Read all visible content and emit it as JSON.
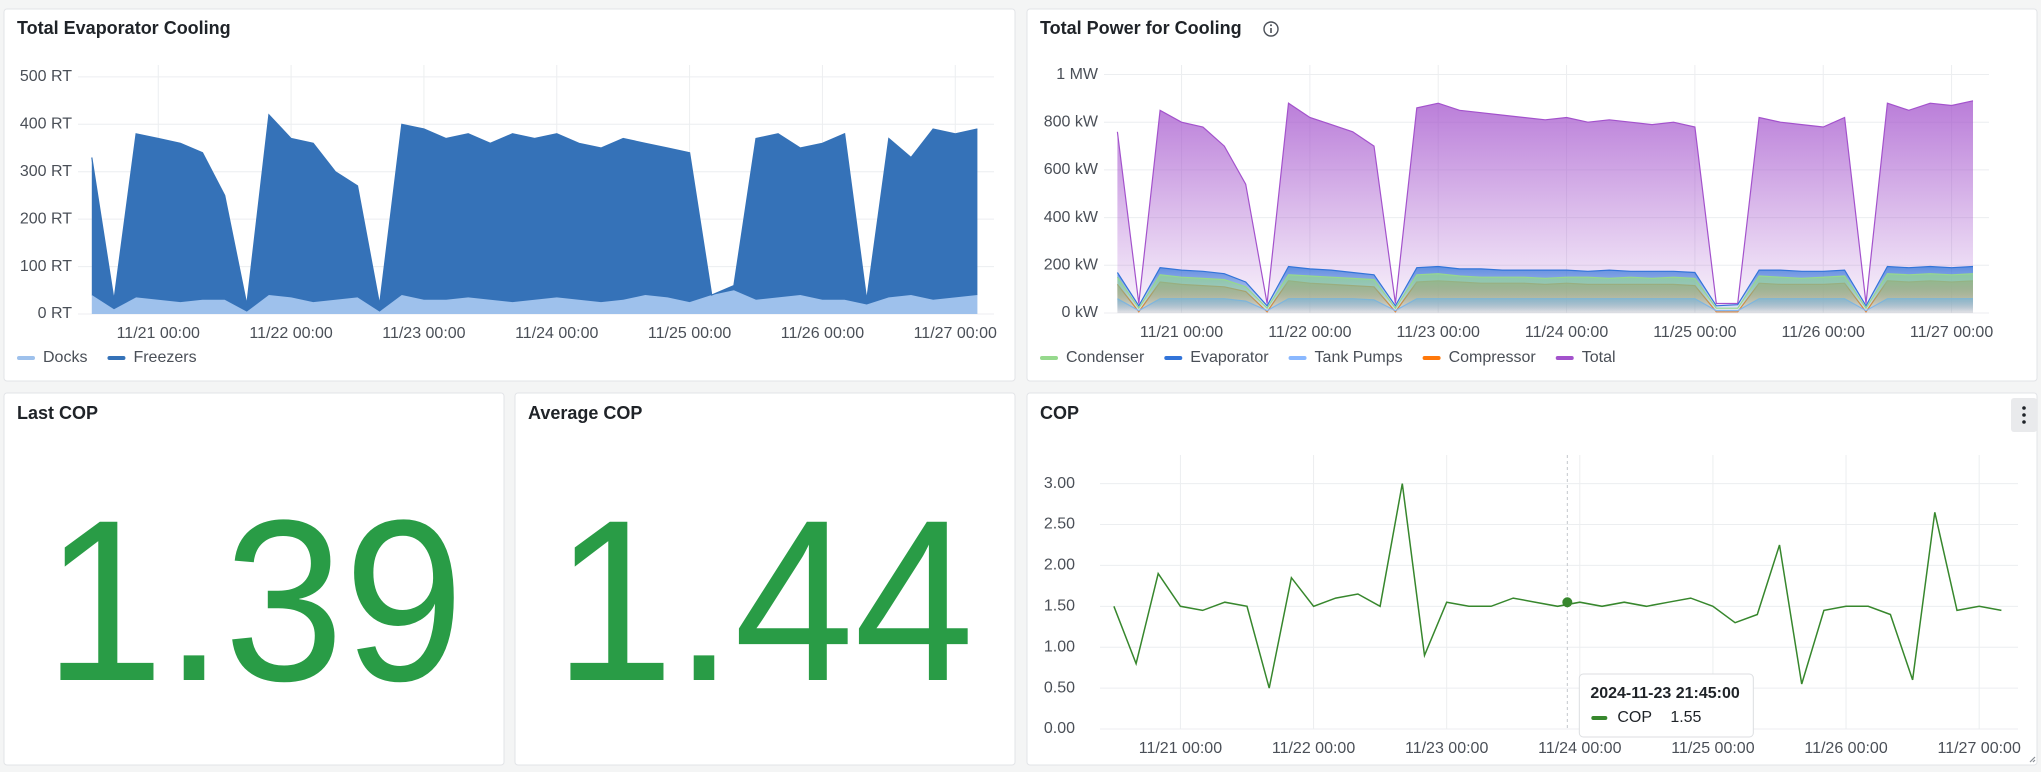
{
  "chart_data": [
    {
      "type": "area",
      "title": "Total Evaporator Cooling",
      "stacked": true,
      "grid": true,
      "legend": "bottom-left",
      "x": [
        "11/20 12:00",
        "11/20 16:00",
        "11/20 20:00",
        "11/21 00:00",
        "11/21 04:00",
        "11/21 08:00",
        "11/21 12:00",
        "11/21 16:00",
        "11/21 20:00",
        "11/22 00:00",
        "11/22 04:00",
        "11/22 08:00",
        "11/22 12:00",
        "11/22 16:00",
        "11/22 20:00",
        "11/23 00:00",
        "11/23 04:00",
        "11/23 08:00",
        "11/23 12:00",
        "11/23 16:00",
        "11/23 20:00",
        "11/24 00:00",
        "11/24 04:00",
        "11/24 08:00",
        "11/24 12:00",
        "11/24 16:00",
        "11/24 20:00",
        "11/25 00:00",
        "11/25 04:00",
        "11/25 08:00",
        "11/25 12:00",
        "11/25 16:00",
        "11/25 20:00",
        "11/26 00:00",
        "11/26 04:00",
        "11/26 08:00",
        "11/26 12:00",
        "11/26 16:00",
        "11/26 20:00",
        "11/27 00:00",
        "11/27 04:00"
      ],
      "xlim": [
        "11/20 09:30",
        "11/27 07:00"
      ],
      "xticks": [
        "11/21 00:00",
        "11/22 00:00",
        "11/23 00:00",
        "11/24 00:00",
        "11/25 00:00",
        "11/26 00:00",
        "11/27 00:00"
      ],
      "ylim": [
        0,
        525
      ],
      "yticks": [
        {
          "value": 0,
          "label": "0 RT"
        },
        {
          "value": 100,
          "label": "100 RT"
        },
        {
          "value": 200,
          "label": "200 RT"
        },
        {
          "value": 300,
          "label": "300 RT"
        },
        {
          "value": 400,
          "label": "400 RT"
        },
        {
          "value": 500,
          "label": "500 RT"
        }
      ],
      "series": [
        {
          "name": "Docks",
          "color": "#9ec1ec",
          "values": [
            40,
            10,
            35,
            30,
            25,
            30,
            30,
            5,
            40,
            35,
            25,
            30,
            35,
            5,
            40,
            30,
            30,
            35,
            30,
            25,
            30,
            35,
            30,
            25,
            30,
            40,
            35,
            25,
            40,
            50,
            30,
            35,
            40,
            30,
            30,
            20,
            35,
            40,
            30,
            35,
            40
          ]
        },
        {
          "name": "Freezers",
          "color": "#3572b8",
          "values": [
            290,
            20,
            345,
            340,
            335,
            310,
            220,
            15,
            380,
            335,
            335,
            270,
            235,
            15,
            360,
            360,
            340,
            345,
            330,
            355,
            340,
            345,
            330,
            325,
            340,
            320,
            315,
            315,
            0,
            10,
            340,
            345,
            310,
            330,
            350,
            10,
            335,
            290,
            360,
            345,
            350
          ]
        }
      ]
    },
    {
      "type": "area",
      "title": "Total Power for Cooling",
      "stacked": false,
      "grid": true,
      "legend": "bottom-left",
      "x": [
        "11/20 12:00",
        "11/20 16:00",
        "11/20 20:00",
        "11/21 00:00",
        "11/21 04:00",
        "11/21 08:00",
        "11/21 12:00",
        "11/21 16:00",
        "11/21 20:00",
        "11/22 00:00",
        "11/22 04:00",
        "11/22 08:00",
        "11/22 12:00",
        "11/22 16:00",
        "11/22 20:00",
        "11/23 00:00",
        "11/23 04:00",
        "11/23 08:00",
        "11/23 12:00",
        "11/23 16:00",
        "11/23 20:00",
        "11/24 00:00",
        "11/24 04:00",
        "11/24 08:00",
        "11/24 12:00",
        "11/24 16:00",
        "11/24 20:00",
        "11/25 00:00",
        "11/25 04:00",
        "11/25 08:00",
        "11/25 12:00",
        "11/25 16:00",
        "11/25 20:00",
        "11/26 00:00",
        "11/26 04:00",
        "11/26 08:00",
        "11/26 12:00",
        "11/26 16:00",
        "11/26 20:00",
        "11/27 00:00",
        "11/27 04:00"
      ],
      "xlim": [
        "11/20 09:30",
        "11/27 07:00"
      ],
      "xticks": [
        "11/21 00:00",
        "11/22 00:00",
        "11/23 00:00",
        "11/24 00:00",
        "11/25 00:00",
        "11/26 00:00",
        "11/27 00:00"
      ],
      "ylim": [
        0,
        1040
      ],
      "yticks": [
        {
          "value": 0,
          "label": "0 kW"
        },
        {
          "value": 200,
          "label": "200 kW"
        },
        {
          "value": 400,
          "label": "400 kW"
        },
        {
          "value": 600,
          "label": "600 kW"
        },
        {
          "value": 800,
          "label": "800 kW"
        },
        {
          "value": 1000,
          "label": "1 MW"
        }
      ],
      "series": [
        {
          "name": "Condenser",
          "color": "#96d98d",
          "values": [
            150,
            20,
            160,
            150,
            145,
            140,
            110,
            20,
            160,
            155,
            150,
            145,
            140,
            20,
            160,
            165,
            155,
            150,
            150,
            150,
            145,
            150,
            150,
            145,
            150,
            145,
            150,
            145,
            20,
            20,
            155,
            150,
            145,
            150,
            155,
            20,
            165,
            160,
            165,
            160,
            165
          ]
        },
        {
          "name": "Evaporator",
          "color": "#3274d9",
          "values": [
            170,
            30,
            190,
            180,
            175,
            165,
            130,
            30,
            195,
            185,
            180,
            170,
            160,
            30,
            190,
            195,
            185,
            185,
            180,
            180,
            180,
            180,
            175,
            180,
            175,
            175,
            175,
            170,
            30,
            35,
            180,
            180,
            175,
            175,
            180,
            30,
            195,
            190,
            195,
            190,
            195
          ]
        },
        {
          "name": "Tank Pumps",
          "color": "#8ab8ff",
          "values": [
            60,
            10,
            60,
            60,
            60,
            60,
            50,
            10,
            60,
            60,
            60,
            60,
            55,
            10,
            60,
            60,
            60,
            60,
            60,
            60,
            60,
            60,
            60,
            60,
            60,
            60,
            60,
            60,
            10,
            10,
            60,
            60,
            60,
            60,
            60,
            10,
            60,
            60,
            60,
            60,
            60
          ]
        },
        {
          "name": "Compressor",
          "color": "#ff780a",
          "values": [
            120,
            5,
            130,
            120,
            115,
            110,
            90,
            5,
            135,
            125,
            120,
            115,
            110,
            5,
            130,
            135,
            130,
            125,
            125,
            125,
            120,
            125,
            120,
            120,
            120,
            120,
            120,
            115,
            5,
            5,
            125,
            120,
            120,
            120,
            125,
            5,
            135,
            130,
            135,
            130,
            135
          ]
        },
        {
          "name": "Total",
          "color": "#a352cc",
          "values": [
            760,
            40,
            850,
            800,
            780,
            700,
            540,
            40,
            880,
            820,
            790,
            760,
            700,
            40,
            860,
            880,
            850,
            840,
            830,
            820,
            810,
            820,
            800,
            810,
            800,
            790,
            800,
            780,
            40,
            40,
            820,
            800,
            790,
            780,
            820,
            40,
            880,
            850,
            880,
            870,
            890
          ]
        }
      ]
    },
    {
      "type": "line",
      "title": "COP",
      "grid": true,
      "x": [
        "11/20 12:00",
        "11/20 16:00",
        "11/20 20:00",
        "11/21 00:00",
        "11/21 04:00",
        "11/21 08:00",
        "11/21 12:00",
        "11/21 16:00",
        "11/21 20:00",
        "11/22 00:00",
        "11/22 04:00",
        "11/22 08:00",
        "11/22 12:00",
        "11/22 16:00",
        "11/22 20:00",
        "11/23 00:00",
        "11/23 04:00",
        "11/23 08:00",
        "11/23 12:00",
        "11/23 16:00",
        "11/23 20:00",
        "11/24 00:00",
        "11/24 04:00",
        "11/24 08:00",
        "11/24 12:00",
        "11/24 16:00",
        "11/24 20:00",
        "11/25 00:00",
        "11/25 04:00",
        "11/25 08:00",
        "11/25 12:00",
        "11/25 16:00",
        "11/25 20:00",
        "11/26 00:00",
        "11/26 04:00",
        "11/26 08:00",
        "11/26 12:00",
        "11/26 16:00",
        "11/26 20:00",
        "11/27 00:00",
        "11/27 04:00"
      ],
      "xlim": [
        "11/20 09:30",
        "11/27 07:00"
      ],
      "xticks": [
        "11/21 00:00",
        "11/22 00:00",
        "11/23 00:00",
        "11/24 00:00",
        "11/25 00:00",
        "11/26 00:00",
        "11/27 00:00"
      ],
      "ylim": [
        0,
        3.35
      ],
      "yticks": [
        {
          "value": 0,
          "label": "0.00"
        },
        {
          "value": 0.5,
          "label": "0.50"
        },
        {
          "value": 1,
          "label": "1.00"
        },
        {
          "value": 1.5,
          "label": "1.50"
        },
        {
          "value": 2,
          "label": "2.00"
        },
        {
          "value": 2.5,
          "label": "2.50"
        },
        {
          "value": 3,
          "label": "3.00"
        }
      ],
      "series": [
        {
          "name": "COP",
          "color": "#37872d",
          "values": [
            1.5,
            0.8,
            1.9,
            1.5,
            1.45,
            1.55,
            1.5,
            0.5,
            1.85,
            1.5,
            1.6,
            1.65,
            1.5,
            3.0,
            0.9,
            1.55,
            1.5,
            1.5,
            1.6,
            1.55,
            1.5,
            1.55,
            1.5,
            1.55,
            1.5,
            1.55,
            1.6,
            1.5,
            1.3,
            1.4,
            2.25,
            0.55,
            1.45,
            1.5,
            1.5,
            1.4,
            0.6,
            2.65,
            1.45,
            1.5,
            1.45
          ]
        }
      ],
      "tooltip": {
        "time": "2024-11-23 21:45:00",
        "value": 1.55
      }
    }
  ],
  "stats": [
    {
      "title": "Last COP",
      "value": 1.39,
      "color": "#299c46"
    },
    {
      "title": "Average COP",
      "value": 1.44,
      "color": "#299c46"
    }
  ]
}
